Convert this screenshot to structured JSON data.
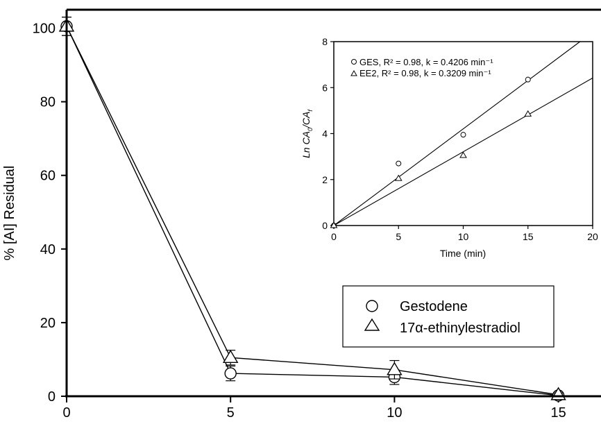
{
  "chart_data": [
    {
      "type": "line",
      "title": "",
      "xlabel": "",
      "ylabel": "% [AI] Residual",
      "xlim": [
        0,
        16.3
      ],
      "ylim": [
        0,
        105
      ],
      "x_ticks": [
        0,
        5,
        10,
        15
      ],
      "y_ticks": [
        0,
        20,
        40,
        60,
        80,
        100
      ],
      "legend_position": "lower-right",
      "series": [
        {
          "name": "Gestodene",
          "marker": "circle",
          "x": [
            0,
            5,
            10,
            15
          ],
          "y": [
            100.5,
            6.2,
            5.2,
            0.2
          ],
          "err": [
            2.5,
            2.0,
            2.0,
            0.5
          ]
        },
        {
          "name": "17α-ethinylestradiol",
          "marker": "triangle",
          "x": [
            0,
            5,
            10,
            15
          ],
          "y": [
            100.5,
            10.5,
            7.2,
            0.4
          ],
          "err": [
            2.5,
            2.0,
            2.5,
            0.5
          ]
        }
      ]
    },
    {
      "type": "scatter",
      "title": "",
      "xlabel": "Time (min)",
      "ylabel_main": "Ln CA",
      "ylabel_sub1": "0",
      "ylabel_mid": "/CA",
      "ylabel_sub2": "f",
      "xlim": [
        0,
        20
      ],
      "ylim": [
        0,
        8
      ],
      "x_ticks": [
        0,
        5,
        10,
        15,
        20
      ],
      "y_ticks": [
        0,
        2,
        4,
        6,
        8
      ],
      "legend_position": "top-left",
      "series": [
        {
          "name": "GES, R² = 0.98, k = 0.4206 min⁻¹",
          "marker": "circle",
          "x": [
            0,
            5,
            10,
            15
          ],
          "y": [
            0,
            2.7,
            3.95,
            6.35
          ],
          "fit_slope": 0.4206
        },
        {
          "name": "EE2, R² = 0.98, k = 0.3209 min⁻¹",
          "marker": "triangle",
          "x": [
            0,
            5,
            10,
            15
          ],
          "y": [
            0,
            2.05,
            3.05,
            4.85
          ],
          "fit_slope": 0.3209
        }
      ]
    }
  ]
}
